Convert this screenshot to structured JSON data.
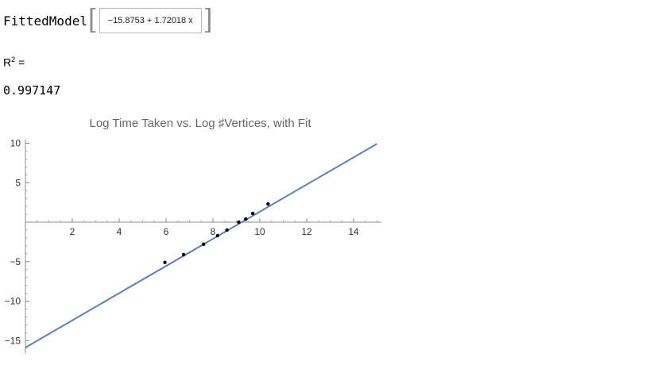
{
  "fitted_model": {
    "label": "FittedModel",
    "expression": "−15.8753 + 1.72018 x"
  },
  "r_squared": {
    "label_base": "R",
    "label_sup": "2",
    "label_suffix": " =",
    "value": "0.997147"
  },
  "chart_data": {
    "type": "scatter",
    "title": "Log Time Taken vs. Log ♯Vertices, with Fit",
    "xlabel": "",
    "ylabel": "",
    "xlim": [
      0,
      15
    ],
    "ylim": [
      -16,
      10.5
    ],
    "x_ticks": [
      2,
      4,
      6,
      8,
      10,
      12,
      14
    ],
    "y_ticks": [
      -15,
      -10,
      -5,
      5,
      10
    ],
    "grid": false,
    "point_color": "#000000",
    "line_color": "#5e81b5",
    "series": [
      {
        "points": [
          [
            5.95,
            -5.1
          ],
          [
            6.75,
            -4.1
          ],
          [
            7.6,
            -2.8
          ],
          [
            8.2,
            -1.7
          ],
          [
            8.6,
            -1.0
          ],
          [
            9.1,
            0.0
          ],
          [
            9.4,
            0.4
          ],
          [
            9.7,
            1.1
          ],
          [
            10.35,
            2.3
          ]
        ]
      }
    ],
    "fit_line": {
      "intercept": -15.8753,
      "slope": 1.72018,
      "x_range": [
        0,
        15
      ]
    }
  }
}
